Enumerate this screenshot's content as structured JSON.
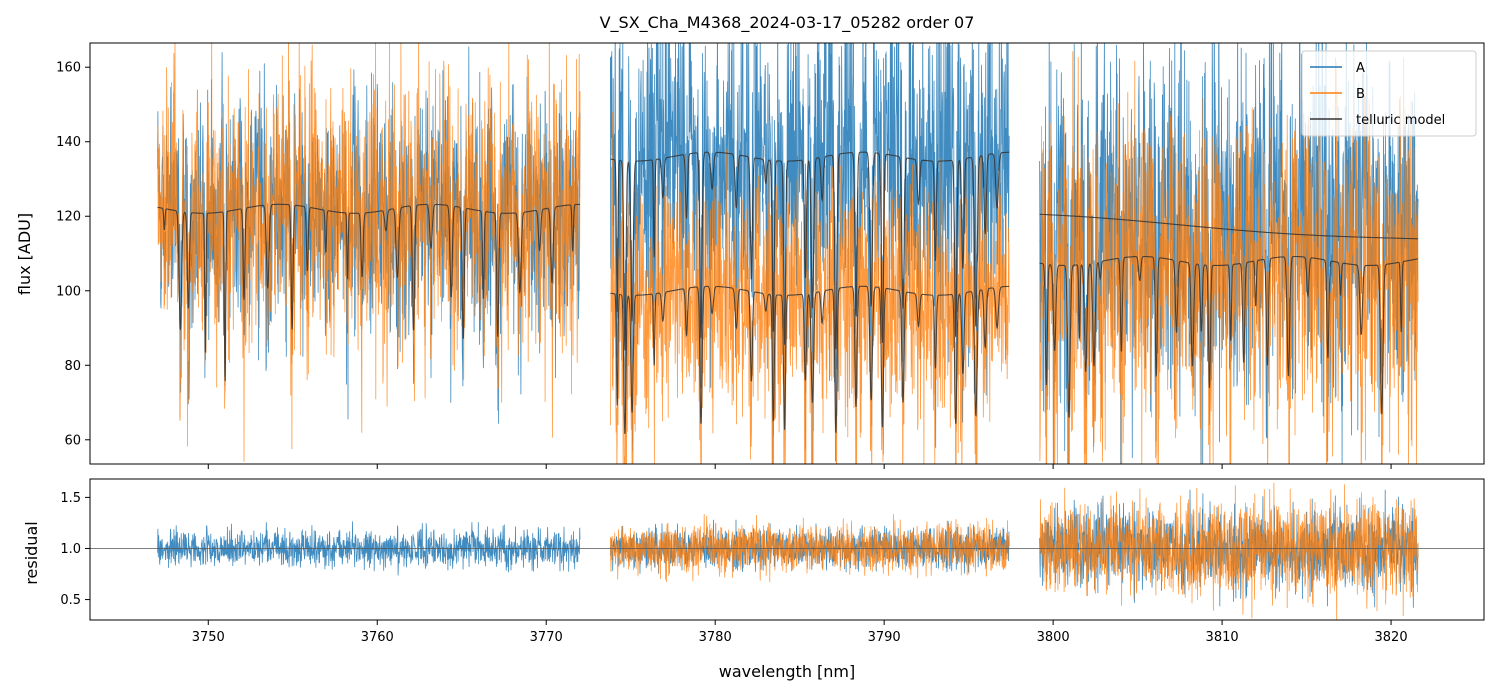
{
  "chart_data": [
    {
      "type": "line",
      "title": "V_SX_Cha_M4368_2024-03-17_05282  order 07",
      "xlabel": "",
      "ylabel": "flux [ADU]",
      "xlim": [
        3743.0,
        3825.5
      ],
      "ylim": [
        53.5,
        166.5
      ],
      "yticks": [
        60,
        80,
        100,
        120,
        140,
        160
      ],
      "ytick_labels": [
        "60",
        "80",
        "100",
        "120",
        "140",
        "160"
      ],
      "xticks": [
        3750,
        3760,
        3770,
        3780,
        3790,
        3800,
        3810,
        3820
      ],
      "legend": {
        "loc": "upper right",
        "entries": [
          "A",
          "B",
          "telluric model"
        ]
      },
      "segments": [
        {
          "x_range": [
            3747.0,
            3772.0
          ],
          "A_mean": 116,
          "A_noise": 16,
          "B_mean": 115,
          "B_noise": 18,
          "model_A_continuum": 122,
          "model_B_continuum": 122
        },
        {
          "x_range": [
            3773.8,
            3797.4
          ],
          "A_mean": 133,
          "A_noise": 22,
          "B_mean": 97,
          "B_noise": 17,
          "model_A_continuum": 136,
          "model_B_continuum": 100
        },
        {
          "x_range": [
            3799.2,
            3821.6
          ],
          "A_mean": 118,
          "A_noise": 24,
          "B_mean": 106,
          "B_noise": 22,
          "model_A_continuum": 120,
          "model_B_continuum": 108
        }
      ],
      "series": [
        {
          "name": "A",
          "color": "#1f77b4"
        },
        {
          "name": "B",
          "color": "#ff7f0e"
        },
        {
          "name": "telluric model",
          "color": "#333333"
        }
      ]
    },
    {
      "type": "line",
      "title": "",
      "xlabel": "wavelength [nm]",
      "ylabel": "residual",
      "xlim": [
        3743.0,
        3825.5
      ],
      "ylim": [
        0.3,
        1.68
      ],
      "yticks": [
        0.5,
        1.0,
        1.5
      ],
      "ytick_labels": [
        "0.5",
        "1.0",
        "1.5"
      ],
      "xticks": [
        3750,
        3760,
        3770,
        3780,
        3790,
        3800,
        3810,
        3820
      ],
      "xtick_labels": [
        "3750",
        "3760",
        "3770",
        "3780",
        "3790",
        "3800",
        "3810",
        "3820"
      ],
      "reference_line": 1.0,
      "segments": [
        {
          "x_range": [
            3747.0,
            3772.0
          ],
          "A_noise": 0.09,
          "B_noise": null
        },
        {
          "x_range": [
            3773.8,
            3797.4
          ],
          "A_noise": 0.1,
          "B_noise": 0.12
        },
        {
          "x_range": [
            3799.2,
            3821.6
          ],
          "A_noise": 0.2,
          "B_noise": 0.24
        }
      ],
      "series": [
        {
          "name": "A",
          "color": "#1f77b4"
        },
        {
          "name": "B",
          "color": "#ff7f0e"
        }
      ]
    }
  ]
}
